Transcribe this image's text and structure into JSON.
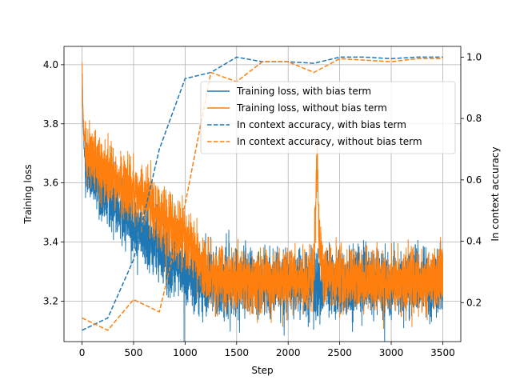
{
  "chart_data": {
    "type": "line",
    "title": "",
    "xlabel": "Step",
    "ylabel": "Training loss",
    "y2label": "In context accuracy",
    "xlim": [
      -175,
      3675
    ],
    "ylim": [
      3.063,
      4.062
    ],
    "y2lim": [
      0.073,
      1.035
    ],
    "grid": true,
    "legend_position": "upper-right",
    "xticks": [
      0,
      500,
      1000,
      1500,
      2000,
      2500,
      3000,
      3500
    ],
    "xtick_labels": [
      "0",
      "500",
      "1000",
      "1500",
      "2000",
      "2500",
      "3000",
      "3500"
    ],
    "yticks": [
      3.2,
      3.4,
      3.6,
      3.8,
      4.0
    ],
    "ytick_labels": [
      "3.2",
      "3.4",
      "3.6",
      "3.8",
      "4.0"
    ],
    "y2ticks": [
      0.2,
      0.4,
      0.6,
      0.8,
      1.0
    ],
    "y2tick_labels": [
      "0.2",
      "0.4",
      "0.6",
      "0.8",
      "1.0"
    ],
    "colors": {
      "blue": "#1f77b4",
      "orange": "#ff7f0e"
    },
    "series": [
      {
        "name": "Training loss, with bias term",
        "axis": "left",
        "style": "solid",
        "color": "#1f77b4",
        "x": [
          0,
          5,
          10,
          20,
          30,
          50,
          75,
          100,
          150,
          200,
          250,
          300,
          350,
          400,
          450,
          500,
          550,
          600,
          650,
          700,
          750,
          800,
          850,
          900,
          950,
          1000,
          1050,
          1100,
          1150,
          1200,
          1250,
          1300,
          1400,
          1500,
          1600,
          1700,
          1800,
          1900,
          2000,
          2100,
          2200,
          2300,
          2400,
          2500,
          2600,
          2700,
          2800,
          2900,
          3000,
          3100,
          3200,
          3300,
          3400,
          3500
        ],
        "y": [
          4.0,
          3.9,
          3.8,
          3.72,
          3.68,
          3.65,
          3.63,
          3.61,
          3.6,
          3.58,
          3.56,
          3.54,
          3.52,
          3.5,
          3.49,
          3.47,
          3.45,
          3.43,
          3.41,
          3.39,
          3.37,
          3.36,
          3.34,
          3.33,
          3.32,
          3.31,
          3.3,
          3.29,
          3.28,
          3.27,
          3.27,
          3.26,
          3.26,
          3.26,
          3.26,
          3.26,
          3.26,
          3.26,
          3.26,
          3.26,
          3.26,
          3.26,
          3.26,
          3.26,
          3.26,
          3.26,
          3.26,
          3.26,
          3.26,
          3.26,
          3.26,
          3.26,
          3.26,
          3.26
        ],
        "noise": 0.055
      },
      {
        "name": "Training loss, without bias term",
        "axis": "left",
        "style": "solid",
        "color": "#ff7f0e",
        "x": [
          0,
          5,
          10,
          20,
          30,
          50,
          75,
          100,
          150,
          200,
          250,
          300,
          350,
          400,
          450,
          500,
          550,
          600,
          650,
          700,
          750,
          800,
          850,
          900,
          950,
          1000,
          1050,
          1100,
          1150,
          1200,
          1250,
          1300,
          1400,
          1500,
          1600,
          1700,
          1800,
          1900,
          2000,
          2100,
          2200,
          2250,
          2270,
          2280,
          2290,
          2300,
          2320,
          2350,
          2400,
          2500,
          2600,
          2700,
          2800,
          2900,
          3000,
          3100,
          3200,
          3300,
          3400,
          3500
        ],
        "y": [
          4.02,
          3.92,
          3.85,
          3.77,
          3.73,
          3.7,
          3.69,
          3.68,
          3.66,
          3.64,
          3.63,
          3.62,
          3.6,
          3.59,
          3.58,
          3.57,
          3.56,
          3.55,
          3.53,
          3.51,
          3.49,
          3.47,
          3.46,
          3.44,
          3.42,
          3.41,
          3.39,
          3.36,
          3.33,
          3.3,
          3.29,
          3.28,
          3.28,
          3.28,
          3.27,
          3.27,
          3.27,
          3.27,
          3.27,
          3.27,
          3.27,
          3.3,
          3.55,
          3.7,
          3.6,
          3.4,
          3.33,
          3.3,
          3.29,
          3.28,
          3.28,
          3.28,
          3.28,
          3.27,
          3.27,
          3.27,
          3.27,
          3.27,
          3.27,
          3.28
        ],
        "noise": 0.05
      },
      {
        "name": "In context accuracy, with bias term",
        "axis": "right",
        "style": "dashed",
        "color": "#1f77b4",
        "x": [
          0,
          250,
          500,
          750,
          1000,
          1250,
          1500,
          1750,
          2000,
          2250,
          2500,
          2750,
          3000,
          3250,
          3500
        ],
        "y": [
          0.11,
          0.15,
          0.34,
          0.7,
          0.93,
          0.95,
          1.0,
          0.985,
          0.985,
          0.98,
          1.0,
          1.0,
          0.995,
          1.0,
          1.0
        ]
      },
      {
        "name": "In context accuracy, without bias term",
        "axis": "right",
        "style": "dashed",
        "color": "#ff7f0e",
        "x": [
          0,
          250,
          500,
          750,
          1000,
          1250,
          1500,
          1750,
          2000,
          2250,
          2500,
          2750,
          3000,
          3250,
          3500
        ],
        "y": [
          0.15,
          0.11,
          0.21,
          0.17,
          0.52,
          0.95,
          0.92,
          0.985,
          0.985,
          0.95,
          0.995,
          0.99,
          0.985,
          0.995,
          0.995
        ]
      }
    ]
  }
}
